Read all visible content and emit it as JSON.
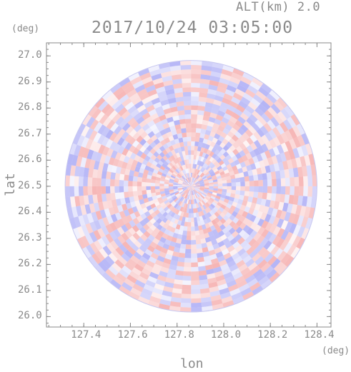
{
  "header": {
    "altitude_label": "ALT(km) 2.0",
    "timestamp": "2017/10/24 03:05:00"
  },
  "chart_data": {
    "type": "heatmap",
    "title": "2017/10/24 03:05:00",
    "subtitle": "ALT(km) 2.0",
    "xlabel": "lon",
    "ylabel": "lat",
    "xunit": "(deg)",
    "yunit": "(deg)",
    "xlim": [
      127.24,
      128.46
    ],
    "ylim": [
      25.96,
      27.05
    ],
    "xticks": [
      "127.4",
      "127.6",
      "127.8",
      "128.0",
      "128.2",
      "128.4"
    ],
    "yticks": [
      "26.0",
      "26.1",
      "26.2",
      "26.3",
      "26.4",
      "26.5",
      "26.6",
      "26.7",
      "26.8",
      "26.9",
      "27.0"
    ],
    "center": {
      "lon": 127.86,
      "lat": 26.5
    },
    "radius_deg": 0.54,
    "colors": {
      "positive": "#f08080",
      "negative": "#8080f0",
      "axis": "#888888"
    }
  }
}
